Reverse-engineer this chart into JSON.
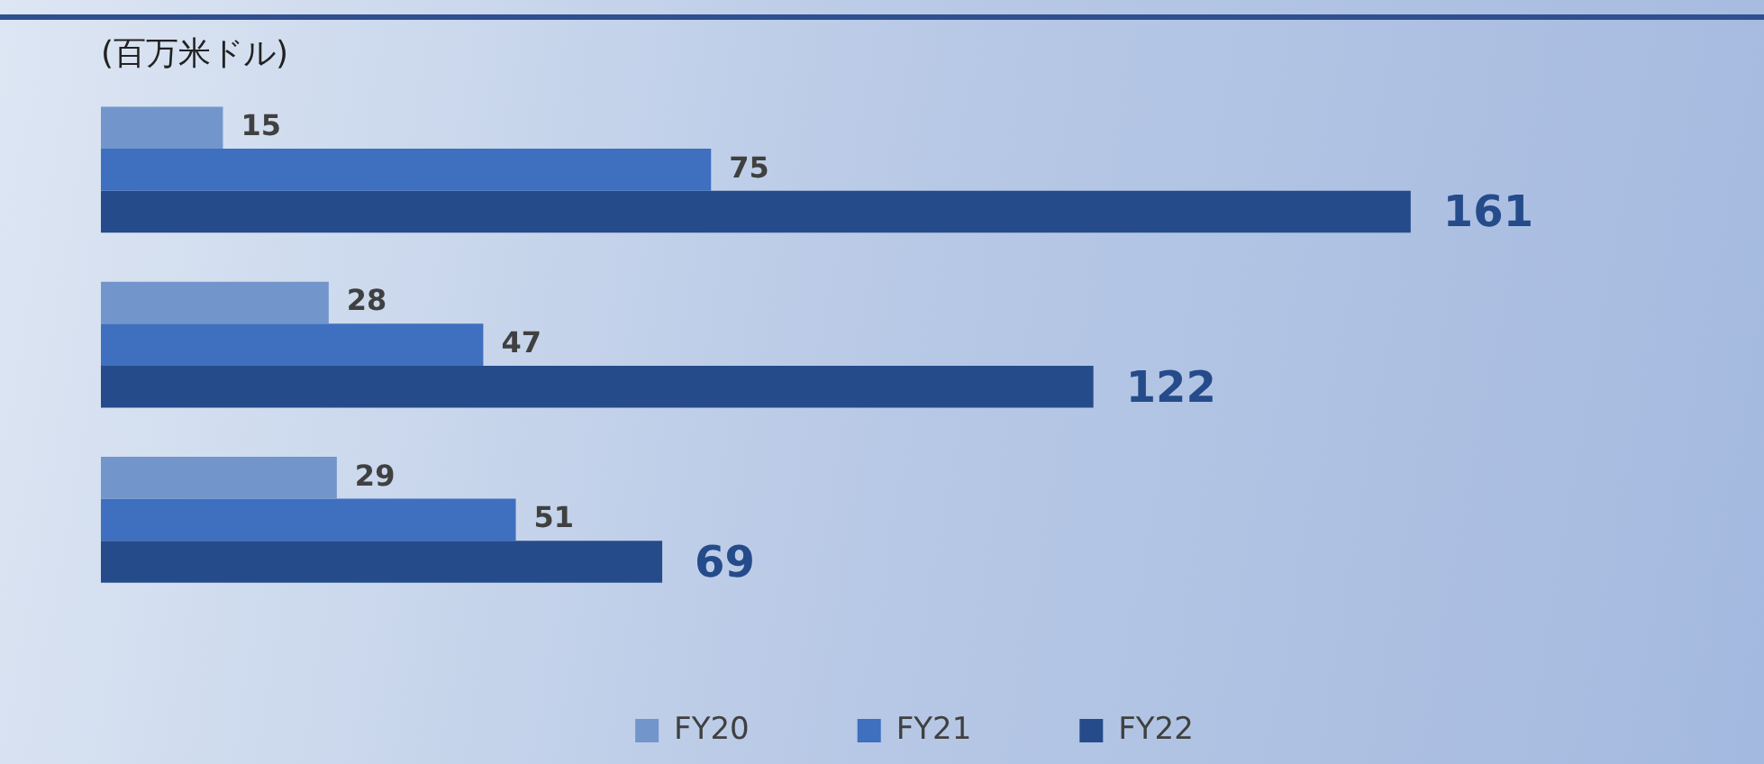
{
  "chart_data": {
    "type": "bar",
    "orientation": "horizontal",
    "subtitle": "(百万米ドル)",
    "categories": [
      null,
      null,
      null
    ],
    "series": [
      {
        "name": "FY20",
        "color": "#7296cc",
        "values": [
          15,
          28,
          29
        ]
      },
      {
        "name": "FY21",
        "color": "#3f6fbf",
        "values": [
          75,
          47,
          51
        ]
      },
      {
        "name": "FY22",
        "color": "#254b8a",
        "values": [
          161,
          122,
          69
        ]
      }
    ],
    "legend": "bottom",
    "data_labels": true
  }
}
